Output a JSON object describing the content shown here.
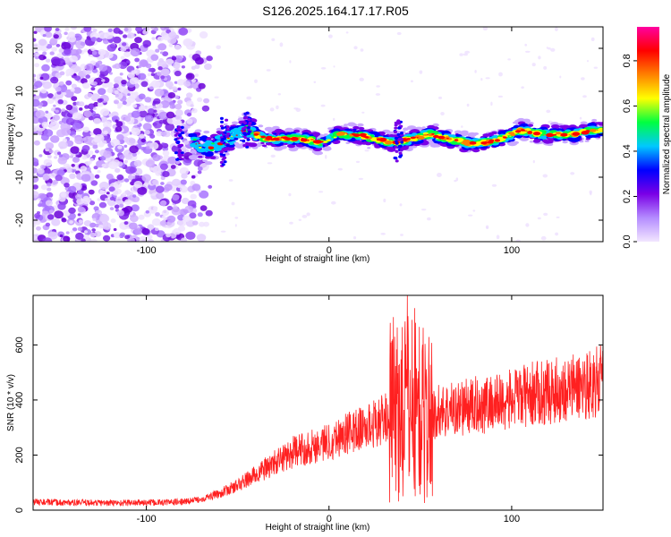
{
  "title": "S126.2025.164.17.17.R05",
  "chart_data": [
    {
      "type": "heatmap",
      "xlabel": "Height of straight line (km)",
      "ylabel": "Frequency (Hz)",
      "xlim": [
        -162,
        150
      ],
      "ylim": [
        -25,
        25
      ],
      "xticks": [
        -100,
        0,
        100
      ],
      "yticks": [
        -20,
        -10,
        0,
        10,
        20
      ],
      "colorbar": {
        "label": "Normalized spectral amplitude",
        "range": [
          0.0,
          0.95
        ],
        "ticks": [
          "0.0",
          "0.2",
          "0.4",
          "0.6",
          "0.8"
        ],
        "tick_values": [
          0.0,
          0.2,
          0.4,
          0.6,
          0.8
        ],
        "colors": [
          "#f2e6ff",
          "#b48cff",
          "#7a00e6",
          "#0000ff",
          "#00c8ff",
          "#00ff40",
          "#ffff00",
          "#ff8000",
          "#ff0000",
          "#ff00a0"
        ]
      },
      "ridge": {
        "x": [
          -75,
          -65,
          -55,
          -45,
          -35,
          -25,
          -15,
          -5,
          5,
          15,
          25,
          35,
          45,
          55,
          65,
          75,
          85,
          95,
          105,
          115,
          125,
          135,
          145
        ],
        "frequency": [
          -2,
          -3,
          -1,
          1,
          -1,
          -1,
          -1,
          -2,
          0,
          0,
          -1,
          -2,
          -1,
          0,
          -1,
          -2,
          -2,
          -1,
          1,
          0,
          0,
          0,
          1
        ]
      },
      "noise_region_x": [
        -162,
        -65
      ]
    },
    {
      "type": "line",
      "xlabel": "Height of straight line (km)",
      "ylabel": "SNR (10 * v/v)",
      "xlim": [
        -162,
        150
      ],
      "ylim": [
        0,
        780
      ],
      "xticks": [
        -100,
        0,
        100
      ],
      "yticks": [
        0,
        200,
        400,
        600
      ],
      "color": "#ff2020",
      "x": [
        -162,
        -150,
        -140,
        -130,
        -120,
        -110,
        -100,
        -90,
        -80,
        -70,
        -60,
        -50,
        -40,
        -30,
        -20,
        -10,
        0,
        10,
        20,
        30,
        35,
        40,
        45,
        50,
        55,
        60,
        70,
        80,
        90,
        100,
        110,
        120,
        130,
        140,
        150
      ],
      "y": [
        30,
        28,
        27,
        27,
        26,
        27,
        27,
        28,
        30,
        40,
        60,
        90,
        130,
        170,
        210,
        230,
        250,
        280,
        300,
        330,
        360,
        380,
        420,
        350,
        330,
        360,
        370,
        380,
        390,
        400,
        420,
        430,
        440,
        455,
        470
      ]
    }
  ]
}
